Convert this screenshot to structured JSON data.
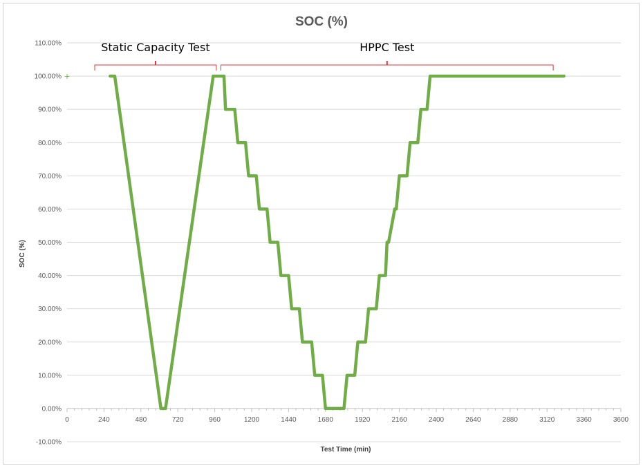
{
  "chart_data": {
    "type": "scatter",
    "title": "SOC (%)",
    "xlabel": "Test Time (min)",
    "ylabel": "SOC (%)",
    "xlim": [
      0,
      3600
    ],
    "ylim": [
      -10,
      110
    ],
    "x_ticks": [
      0,
      240,
      480,
      720,
      960,
      1200,
      1440,
      1680,
      1920,
      2160,
      2400,
      2640,
      2880,
      3120,
      3360,
      3600
    ],
    "y_ticks": [
      -10,
      0,
      10,
      20,
      30,
      40,
      50,
      60,
      70,
      80,
      90,
      100,
      110
    ],
    "y_tick_labels": [
      "-10.00%",
      "0.00%",
      "10.00%",
      "20.00%",
      "30.00%",
      "40.00%",
      "50.00%",
      "60.00%",
      "70.00%",
      "80.00%",
      "90.00%",
      "100.00%",
      "110.00%"
    ],
    "grid": "horizontal",
    "series_color": "#70ad47",
    "series": [
      {
        "x": [
          0,
          280,
          310,
          610,
          640,
          950,
          970,
          1020,
          1030,
          1090,
          1110,
          1160,
          1180,
          1230,
          1250,
          1300,
          1320,
          1370,
          1390,
          1440,
          1460,
          1510,
          1530,
          1590,
          1610,
          1660,
          1680,
          1730,
          1750,
          1800,
          1820,
          1870,
          1890,
          1940,
          1960,
          2010,
          2030,
          2070,
          2080,
          2090,
          2130,
          2140,
          2160,
          2210,
          2230,
          2280,
          2300,
          2340,
          2360,
          2410,
          2430,
          2490,
          2510,
          2560,
          2580,
          2630,
          2650,
          2700,
          2720,
          2770,
          2790,
          2850,
          2870,
          2910,
          2930,
          2990,
          3010,
          3050,
          3070,
          3130,
          3150,
          3180,
          3200,
          3230
        ],
        "y": [
          100,
          100,
          100,
          0,
          0,
          100,
          100,
          100,
          90,
          90,
          80,
          80,
          70,
          70,
          60,
          60,
          50,
          50,
          40,
          40,
          30,
          30,
          20,
          20,
          10,
          10,
          0,
          0,
          0,
          0,
          10,
          10,
          20,
          20,
          30,
          30,
          40,
          40,
          50,
          50,
          60,
          60,
          70,
          70,
          80,
          80,
          90,
          90,
          100,
          100,
          100,
          100,
          100,
          100,
          100,
          100,
          100,
          100,
          100,
          100,
          100,
          100,
          100,
          100,
          100,
          100,
          100,
          100,
          100,
          100,
          100,
          100,
          100,
          100
        ]
      }
    ],
    "annotations": [
      {
        "text": "Static Capacity Test",
        "x_start": 180,
        "x_end": 970
      },
      {
        "text": "HPPC Test",
        "x_start": 1000,
        "x_end": 3160
      }
    ]
  }
}
